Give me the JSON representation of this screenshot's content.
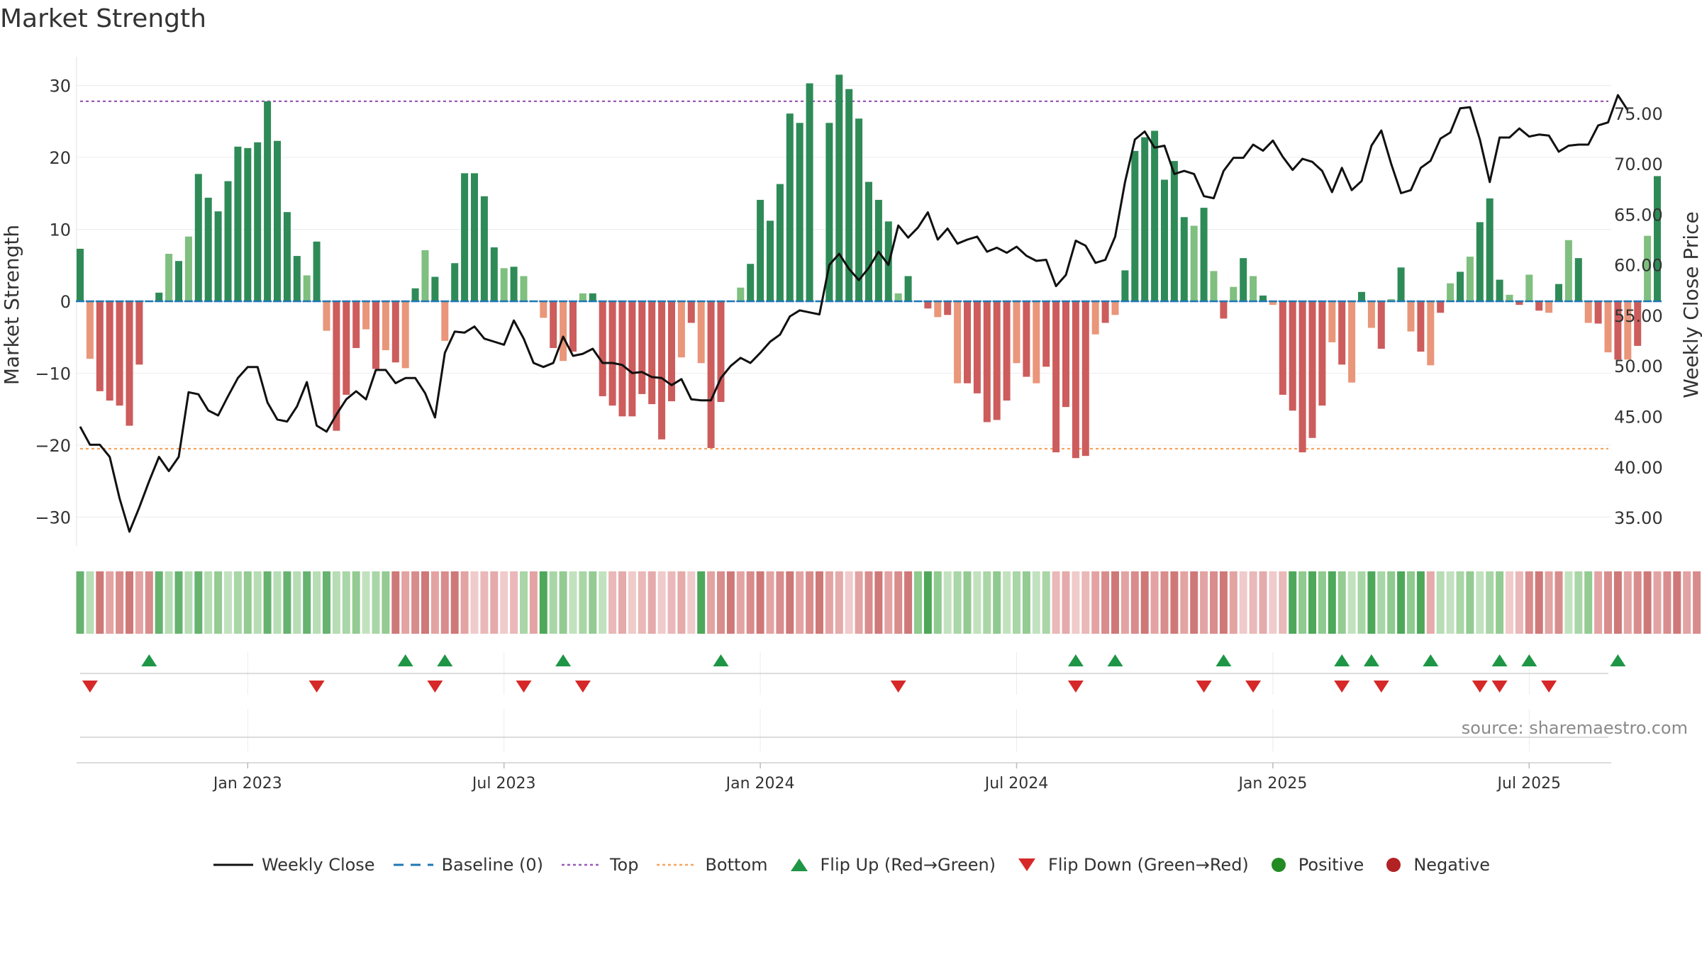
{
  "title": "Market Strength",
  "source": "source: sharemaestro.com",
  "colors": {
    "positive": "#2e8b57",
    "positive_light": "#7fbf7f",
    "negative": "#cd5c5c",
    "negative_light": "#e9967a",
    "price_line": "#111111",
    "top_line": "#9b59b6",
    "bottom_line": "#f4a460",
    "baseline": "#1f77b4",
    "flip_up": "#1e9646",
    "flip_down": "#d62828"
  },
  "legend": {
    "weekly_close": "Weekly Close",
    "baseline": "Baseline (0)",
    "top": "Top",
    "bottom": "Bottom",
    "flip_up": "Flip Up (Red→Green)",
    "flip_down": "Flip Down (Green→Red)",
    "positive": "Positive",
    "negative": "Negative"
  },
  "chart_data": {
    "type": "bar",
    "title": "Market Strength",
    "ylabel": "Market Strength",
    "y2label": "Weekly Close Price",
    "ylim": [
      -34,
      34
    ],
    "y2lim": [
      32.2,
      80.6
    ],
    "yticks": [
      30,
      20,
      10,
      0,
      -10,
      -20,
      -30
    ],
    "ytick_labels": [
      "30",
      "20",
      "10",
      "0",
      "−10",
      "−20",
      "−30"
    ],
    "y2ticks": [
      75,
      70,
      65,
      60,
      55,
      50,
      45,
      40,
      35
    ],
    "y2tick_labels": [
      "75.00",
      "70.00",
      "65.00",
      "60.00",
      "55.00",
      "50.00",
      "45.00",
      "40.00",
      "35.00"
    ],
    "x_ticks": [
      {
        "week": 17,
        "label": "Jan 2023"
      },
      {
        "week": 43,
        "label": "Jul 2023"
      },
      {
        "week": 69,
        "label": "Jan 2024"
      },
      {
        "week": 95,
        "label": "Jul 2024"
      },
      {
        "week": 121,
        "label": "Jan 2025"
      },
      {
        "week": 147,
        "label": "Jul 2025"
      }
    ],
    "top_level": 27.8,
    "bottom_level": -20.5,
    "strength": [
      7.3,
      -8,
      -12.5,
      -13.8,
      -14.5,
      -17.3,
      -8.8,
      0,
      1.2,
      6.6,
      5.6,
      9,
      17.7,
      14.4,
      12.5,
      16.7,
      21.5,
      21.3,
      22.1,
      27.8,
      22.3,
      12.4,
      6.3,
      3.6,
      8.3,
      -4.1,
      -18,
      -13,
      -6.5,
      -3.9,
      -9.4,
      -6.8,
      -8.5,
      -9.3,
      1.8,
      7.1,
      3.4,
      -5.5,
      5.3,
      17.8,
      17.8,
      14.6,
      7.5,
      4.6,
      4.8,
      3.5,
      0,
      -2.3,
      -6.5,
      -8.3,
      -7,
      1.1,
      1.1,
      -13.2,
      -14.5,
      -16,
      -16,
      -12.9,
      -14.3,
      -19.2,
      -13.9,
      -7.8,
      -3,
      -8.6,
      -20.4,
      -14,
      0,
      1.9,
      5.2,
      14.1,
      11.2,
      16.3,
      26.1,
      24.8,
      30.3,
      0,
      24.8,
      31.5,
      29.5,
      25.4,
      16.6,
      14.1,
      11.1,
      1.1,
      3.5,
      0,
      -1,
      -2.2,
      -1.9,
      -11.4,
      -11.4,
      -12.8,
      -16.8,
      -16.5,
      -13.8,
      -8.6,
      -10.5,
      -11.4,
      -9.1,
      -21,
      -14.7,
      -21.8,
      -21.5,
      -4.6,
      -3,
      -1.9,
      4.3,
      20.9,
      22.8,
      23.7,
      16.9,
      19.5,
      11.7,
      10.5,
      13,
      4.2,
      -2.4,
      2,
      6,
      3.5,
      0.8,
      -0.5,
      -13,
      -15.2,
      -21,
      -19,
      -14.5,
      -5.7,
      -8.8,
      -11.3,
      1.3,
      -3.7,
      -6.6,
      0.3,
      4.7,
      -4.2,
      -7,
      -8.9,
      -1.6,
      2.5,
      4.1,
      6.2,
      11,
      14.3,
      3,
      0.9,
      -0.5,
      3.7,
      -1.3,
      -1.6,
      2.4,
      8.5,
      6,
      -3,
      -3.1,
      -7.1,
      -8.1,
      -8.1,
      -6.2,
      9.1,
      17.4
    ],
    "weekly_close": [
      44,
      42.2,
      42.2,
      41,
      36.9,
      33.6,
      36,
      38.6,
      41,
      39.6,
      41,
      47.4,
      47.2,
      45.6,
      45.1,
      47,
      48.8,
      49.9,
      49.9,
      46.4,
      44.7,
      44.5,
      46,
      48.4,
      44.1,
      43.5,
      45.2,
      46.7,
      47.5,
      46.7,
      49.6,
      49.6,
      48.3,
      48.8,
      48.8,
      47.3,
      44.9,
      51.3,
      53.4,
      53.3,
      53.9,
      52.7,
      52.4,
      52.1,
      54.5,
      52.7,
      50.3,
      49.9,
      50.3,
      52.9,
      51,
      51.2,
      51.7,
      50.3,
      50.3,
      50.1,
      49.3,
      49.4,
      48.9,
      48.8,
      48.1,
      48.7,
      46.7,
      46.6,
      46.6,
      48.8,
      50,
      50.8,
      50.3,
      51.3,
      52.4,
      53.1,
      54.9,
      55.5,
      55.3,
      55.1,
      60,
      61.1,
      59.6,
      58.5,
      59.7,
      61.3,
      60,
      63.9,
      62.7,
      63.7,
      65.2,
      62.5,
      63.6,
      62.1,
      62.5,
      62.8,
      61.3,
      61.7,
      61.2,
      61.8,
      60.9,
      60.4,
      60.5,
      57.9,
      59,
      62.4,
      61.9,
      60.2,
      60.5,
      62.8,
      68.2,
      72.4,
      73.2,
      71.6,
      71.8,
      69,
      69.3,
      69,
      66.8,
      66.6,
      69.3,
      70.6,
      70.6,
      71.9,
      71.3,
      72.3,
      70.7,
      69.4,
      70.5,
      70.2,
      69.3,
      67.2,
      69.6,
      67.4,
      68.3,
      71.8,
      73.3,
      70,
      67.1,
      67.4,
      69.6,
      70.3,
      72.5,
      73.1,
      75.5,
      75.6,
      72.4,
      68.2,
      72.6,
      72.6,
      73.5,
      72.7,
      72.9,
      72.8,
      71.2,
      71.8,
      71.9,
      71.9,
      73.8,
      74.1,
      76.8,
      75.3
    ],
    "flip_up_weeks": [
      7,
      33,
      37,
      49,
      65,
      101,
      105,
      116,
      128,
      131,
      137,
      144,
      147,
      156
    ],
    "flip_down_weeks": [
      1,
      24,
      36,
      45,
      51,
      83,
      101,
      114,
      119,
      128,
      132,
      142,
      144,
      149
    ],
    "regime_strip": "G:2,R:6,G:6,g:4,G:9,g:5,R:8,r:5,g:1,R:1,G:1,g:6,r:9,G:1,R:13,r:2,R:6,G:3,g:5,G:1,g:5,r:4,R:10,R:5,r:5,G:5,g:3,G:1,g:1,G:4,r:1,G:1,g:6,r:2,R:4,g:3,R:11,r:1,g:3,G:8,g:6,R:4,r:1,G:1"
  }
}
